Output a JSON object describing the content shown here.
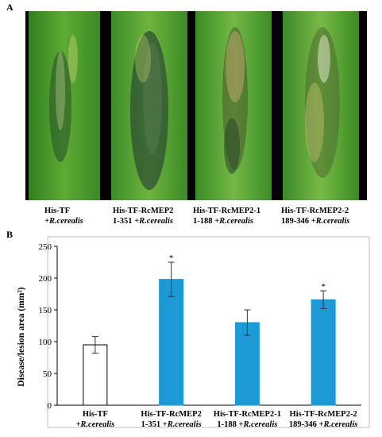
{
  "panel_a": {
    "label": "A",
    "leaves": [
      {
        "name": "His-TF",
        "line1": "His-TF",
        "line2_prefix": "",
        "line2_italic": "+R.cerealis"
      },
      {
        "name": "His-TF-RcMEP2",
        "line1": "His-TF-RcMEP2",
        "line2_prefix": "1-351",
        "line2_italic": "+R.cerealis"
      },
      {
        "name": "His-TF-RcMEP2-1",
        "line1": "His-TF-RcMEP2-1",
        "line2_prefix": "1-188",
        "line2_italic": "+R.cerealis"
      },
      {
        "name": "His-TF-RcMEP2-2",
        "line1": "His-TF-RcMEP2-2",
        "line2_prefix": "189-346",
        "line2_italic": "+R.cerealis"
      }
    ]
  },
  "panel_b": {
    "label": "B"
  },
  "chart_data": {
    "type": "bar",
    "title": "",
    "xlabel": "",
    "ylabel": "Disease/lesion area (mm²)",
    "ylim": [
      0,
      250
    ],
    "yticks": [
      0,
      50,
      100,
      150,
      200,
      250
    ],
    "categories": [
      {
        "line1": "His-TF",
        "line2_prefix": "",
        "line2_italic": "+R.cerealis"
      },
      {
        "line1": "His-TF-RcMEP2",
        "line2_prefix": "1-351",
        "line2_italic": "+R.cerealis"
      },
      {
        "line1": "His-TF-RcMEP2-1",
        "line2_prefix": "1-188",
        "line2_italic": "+R.cerealis"
      },
      {
        "line1": "His-TF-RcMEP2-2",
        "line2_prefix": "189-346",
        "line2_italic": "+R.cerealis"
      }
    ],
    "values": [
      95,
      198,
      130,
      166
    ],
    "errors": [
      13,
      27,
      20,
      14
    ],
    "significance": [
      "",
      "*",
      "",
      "*"
    ],
    "colors": {
      "control_fill": "#ffffff",
      "treatment_fill": "#1b9ad6",
      "outline": "#333333"
    },
    "grid": false
  }
}
